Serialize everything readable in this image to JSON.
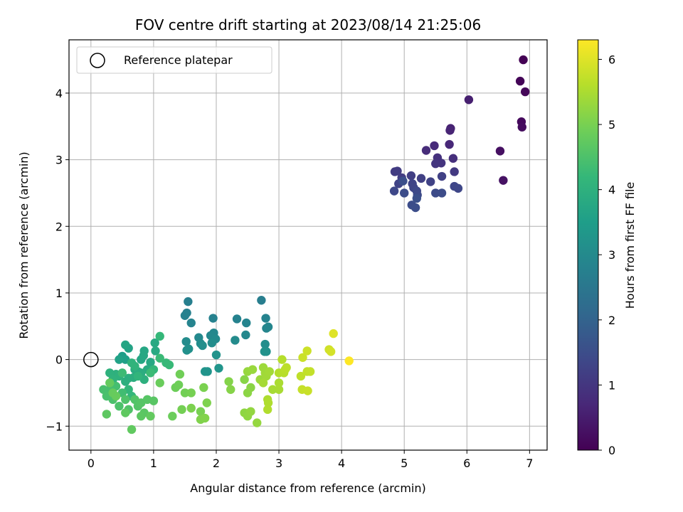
{
  "chart_data": {
    "type": "scatter",
    "title": "FOV centre drift starting at 2023/08/14 21:25:06",
    "xlabel": "Angular distance from reference (arcmin)",
    "ylabel": "Rotation from reference (arcmin)",
    "xlim": [
      -0.35,
      7.28
    ],
    "ylim": [
      -1.36,
      4.8
    ],
    "xticks": [
      0,
      1,
      2,
      3,
      4,
      5,
      6,
      7
    ],
    "yticks": [
      -1,
      0,
      1,
      2,
      3,
      4
    ],
    "grid": true,
    "legend": {
      "placement": "upper-left",
      "entries": [
        {
          "label": "Reference platepar",
          "marker": "open-circle"
        }
      ]
    },
    "reference_point": {
      "x": 0,
      "y": 0
    },
    "colorbar": {
      "label": "Hours from first FF file",
      "colormap": "viridis",
      "range": [
        0,
        6.3
      ],
      "ticks": [
        0,
        1,
        2,
        3,
        4,
        5,
        6
      ]
    },
    "colors": {
      "viridis": [
        "#440154",
        "#482878",
        "#3e4989",
        "#31688e",
        "#26828e",
        "#1f9e89",
        "#35b779",
        "#6ece58",
        "#b5de2b",
        "#fde725"
      ],
      "grid": "#b0b0b0",
      "axes": "#000000"
    },
    "points": [
      [
        6.9,
        4.5,
        0.0
      ],
      [
        6.85,
        4.18,
        0.05
      ],
      [
        6.93,
        4.02,
        0.1
      ],
      [
        6.87,
        3.57,
        0.15
      ],
      [
        6.88,
        3.49,
        0.2
      ],
      [
        6.53,
        3.13,
        0.25
      ],
      [
        6.58,
        2.69,
        0.3
      ],
      [
        6.03,
        3.9,
        0.55
      ],
      [
        5.74,
        3.47,
        0.6
      ],
      [
        5.73,
        3.44,
        0.65
      ],
      [
        5.72,
        3.23,
        0.7
      ],
      [
        5.48,
        3.21,
        0.75
      ],
      [
        5.35,
        3.14,
        0.8
      ],
      [
        5.78,
        3.02,
        0.85
      ],
      [
        5.53,
        3.03,
        0.9
      ],
      [
        5.59,
        2.95,
        0.95
      ],
      [
        5.5,
        2.94,
        1.0
      ],
      [
        5.8,
        2.82,
        1.05
      ],
      [
        4.85,
        2.82,
        1.1
      ],
      [
        4.89,
        2.83,
        1.12
      ],
      [
        4.96,
        2.73,
        1.15
      ],
      [
        5.11,
        2.76,
        1.18
      ],
      [
        5.27,
        2.72,
        1.2
      ],
      [
        5.6,
        2.75,
        1.22
      ],
      [
        5.42,
        2.67,
        1.25
      ],
      [
        4.91,
        2.64,
        1.28
      ],
      [
        5.13,
        2.64,
        1.3
      ],
      [
        5.15,
        2.58,
        1.32
      ],
      [
        5.8,
        2.6,
        1.34
      ],
      [
        5.86,
        2.57,
        1.36
      ],
      [
        4.84,
        2.53,
        1.38
      ],
      [
        5.2,
        2.53,
        1.4
      ],
      [
        5.21,
        2.47,
        1.42
      ],
      [
        5.5,
        2.5,
        1.44
      ],
      [
        5.6,
        2.5,
        1.46
      ],
      [
        5.0,
        2.5,
        1.48
      ],
      [
        5.12,
        2.32,
        1.5
      ],
      [
        5.18,
        2.28,
        1.52
      ],
      [
        4.98,
        2.68,
        1.54
      ],
      [
        5.2,
        2.42,
        1.56
      ],
      [
        2.72,
        0.89,
        2.7
      ],
      [
        1.55,
        0.87,
        2.72
      ],
      [
        1.53,
        0.7,
        2.74
      ],
      [
        1.5,
        0.66,
        2.76
      ],
      [
        1.95,
        0.62,
        2.78
      ],
      [
        2.33,
        0.61,
        2.8
      ],
      [
        2.79,
        0.62,
        2.82
      ],
      [
        1.6,
        0.55,
        2.84
      ],
      [
        2.48,
        0.55,
        2.86
      ],
      [
        2.8,
        0.47,
        2.88
      ],
      [
        2.83,
        0.49,
        2.9
      ],
      [
        1.96,
        0.4,
        2.92
      ],
      [
        1.91,
        0.36,
        2.94
      ],
      [
        2.47,
        0.37,
        2.96
      ],
      [
        1.72,
        0.33,
        2.98
      ],
      [
        1.99,
        0.31,
        3.0
      ],
      [
        2.3,
        0.29,
        3.02
      ],
      [
        1.52,
        0.27,
        3.04
      ],
      [
        1.75,
        0.24,
        3.06
      ],
      [
        1.93,
        0.25,
        3.08
      ],
      [
        2.78,
        0.23,
        3.1
      ],
      [
        1.78,
        0.21,
        3.12
      ],
      [
        1.53,
        0.14,
        3.14
      ],
      [
        1.56,
        0.16,
        3.16
      ],
      [
        2.8,
        0.12,
        3.18
      ],
      [
        2.77,
        0.12,
        3.2
      ],
      [
        2.0,
        0.07,
        3.22
      ],
      [
        1.82,
        -0.18,
        3.24
      ],
      [
        1.86,
        -0.18,
        3.26
      ],
      [
        2.04,
        -0.13,
        3.28
      ],
      [
        0.5,
        0.05,
        3.5
      ],
      [
        0.55,
        0.0,
        3.55
      ],
      [
        0.45,
        0.0,
        3.6
      ],
      [
        0.6,
        0.17,
        3.65
      ],
      [
        0.55,
        0.22,
        3.7
      ],
      [
        0.8,
        0.0,
        3.72
      ],
      [
        0.85,
        0.13,
        3.74
      ],
      [
        0.84,
        0.06,
        3.76
      ],
      [
        0.95,
        -0.04,
        3.78
      ],
      [
        1.02,
        0.25,
        3.8
      ],
      [
        1.03,
        0.13,
        3.82
      ],
      [
        0.9,
        -0.15,
        3.84
      ],
      [
        0.7,
        -0.15,
        3.86
      ],
      [
        0.75,
        -0.18,
        3.88
      ],
      [
        0.8,
        -0.2,
        3.9
      ],
      [
        0.68,
        -0.27,
        3.92
      ],
      [
        0.6,
        -0.28,
        3.94
      ],
      [
        0.55,
        -0.33,
        3.96
      ],
      [
        0.85,
        -0.3,
        3.98
      ],
      [
        0.4,
        -0.22,
        4.0
      ],
      [
        0.3,
        -0.2,
        4.02
      ],
      [
        0.45,
        -0.25,
        4.04
      ],
      [
        0.35,
        -0.3,
        4.06
      ],
      [
        0.65,
        -0.05,
        4.08
      ],
      [
        0.7,
        -0.1,
        4.1
      ],
      [
        0.75,
        -0.25,
        4.12
      ],
      [
        0.6,
        -0.45,
        4.14
      ],
      [
        0.65,
        -0.55,
        4.16
      ],
      [
        1.0,
        -0.15,
        4.18
      ],
      [
        1.1,
        0.35,
        4.2
      ],
      [
        1.2,
        -0.05,
        4.22
      ],
      [
        1.25,
        -0.08,
        4.24
      ],
      [
        1.1,
        0.02,
        4.26
      ],
      [
        0.95,
        -0.2,
        4.28
      ],
      [
        0.5,
        -0.2,
        4.3
      ],
      [
        0.5,
        -0.5,
        4.35
      ],
      [
        0.4,
        -0.4,
        4.4
      ],
      [
        0.3,
        -0.45,
        4.42
      ],
      [
        0.2,
        -0.45,
        4.44
      ],
      [
        0.25,
        -0.55,
        4.46
      ],
      [
        0.35,
        -0.6,
        4.48
      ],
      [
        0.45,
        -0.7,
        4.5
      ],
      [
        0.55,
        -0.6,
        4.52
      ],
      [
        0.6,
        -0.75,
        4.54
      ],
      [
        0.7,
        -0.6,
        4.56
      ],
      [
        0.75,
        -0.7,
        4.58
      ],
      [
        0.8,
        -0.65,
        4.6
      ],
      [
        0.9,
        -0.6,
        4.62
      ],
      [
        1.0,
        -0.62,
        4.64
      ],
      [
        0.85,
        -0.8,
        4.66
      ],
      [
        0.8,
        -0.85,
        4.68
      ],
      [
        0.25,
        -0.82,
        4.7
      ],
      [
        0.55,
        -0.8,
        4.72
      ],
      [
        0.65,
        -1.05,
        4.74
      ],
      [
        0.95,
        -0.85,
        4.76
      ],
      [
        0.3,
        -0.35,
        4.78
      ],
      [
        0.35,
        -0.5,
        4.8
      ],
      [
        0.4,
        -0.55,
        4.82
      ],
      [
        1.1,
        -0.35,
        4.84
      ],
      [
        1.3,
        -0.85,
        4.86
      ],
      [
        1.35,
        -0.42,
        4.88
      ],
      [
        1.4,
        -0.38,
        4.9
      ],
      [
        1.42,
        -0.22,
        4.92
      ],
      [
        1.5,
        -0.5,
        4.94
      ],
      [
        1.45,
        -0.75,
        4.96
      ],
      [
        1.6,
        -0.5,
        4.98
      ],
      [
        1.75,
        -0.78,
        5.0
      ],
      [
        1.8,
        -0.42,
        5.02
      ],
      [
        1.6,
        -0.73,
        5.04
      ],
      [
        1.85,
        -0.65,
        5.06
      ],
      [
        1.75,
        -0.9,
        5.08
      ],
      [
        1.82,
        -0.88,
        5.1
      ],
      [
        2.2,
        -0.33,
        5.12
      ],
      [
        2.23,
        -0.45,
        5.14
      ],
      [
        2.45,
        -0.3,
        5.16
      ],
      [
        2.55,
        -0.42,
        5.18
      ],
      [
        2.5,
        -0.5,
        5.2
      ],
      [
        2.45,
        -0.8,
        5.22
      ],
      [
        2.5,
        -0.85,
        5.24
      ],
      [
        2.55,
        -0.78,
        5.26
      ],
      [
        2.65,
        -0.95,
        5.28
      ],
      [
        2.5,
        -0.18,
        5.3
      ],
      [
        2.58,
        -0.15,
        5.32
      ],
      [
        2.7,
        -0.3,
        5.34
      ],
      [
        2.75,
        -0.12,
        5.36
      ],
      [
        2.78,
        -0.2,
        5.38
      ],
      [
        2.8,
        -0.25,
        5.4
      ],
      [
        2.85,
        -0.18,
        5.42
      ],
      [
        2.75,
        -0.35,
        5.44
      ],
      [
        2.9,
        -0.45,
        5.46
      ],
      [
        3.0,
        -0.45,
        5.48
      ],
      [
        3.0,
        -0.35,
        5.5
      ],
      [
        2.82,
        -0.6,
        5.52
      ],
      [
        2.83,
        -0.65,
        5.54
      ],
      [
        2.82,
        -0.75,
        5.56
      ],
      [
        3.0,
        -0.2,
        5.58
      ],
      [
        3.05,
        0.0,
        5.6
      ],
      [
        3.08,
        -0.2,
        5.62
      ],
      [
        3.1,
        -0.15,
        5.64
      ],
      [
        3.12,
        -0.12,
        5.66
      ],
      [
        3.35,
        -0.25,
        5.7
      ],
      [
        3.45,
        -0.18,
        5.72
      ],
      [
        3.5,
        -0.18,
        5.74
      ],
      [
        3.37,
        -0.45,
        5.76
      ],
      [
        3.46,
        -0.47,
        5.78
      ],
      [
        3.38,
        0.03,
        5.8
      ],
      [
        3.45,
        0.13,
        5.82
      ],
      [
        3.8,
        0.15,
        5.85
      ],
      [
        3.83,
        0.12,
        5.9
      ],
      [
        3.87,
        0.39,
        6.0
      ],
      [
        4.12,
        -0.02,
        6.3
      ]
    ]
  }
}
